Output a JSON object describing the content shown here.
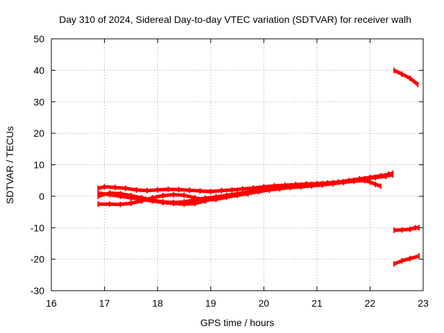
{
  "chart_data": {
    "type": "line",
    "title": "Day 310 of 2024, Sidereal Day-to-day VTEC variation (SDTVAR) for receiver walh",
    "xlabel": "GPS time / hours",
    "ylabel": "SDTVAR / TECUs",
    "xlim": [
      16,
      23
    ],
    "ylim": [
      -30,
      50
    ],
    "xticks": [
      "16",
      "17",
      "18",
      "19",
      "20",
      "21",
      "22",
      "23"
    ],
    "yticks": [
      "-30",
      "-20",
      "-10",
      "0",
      "10",
      "20",
      "30",
      "40",
      "50"
    ],
    "grid": true,
    "legend": "none",
    "color": "#ff0000",
    "series": [
      {
        "x": [
          16.88,
          17.0,
          17.2,
          17.4,
          17.6,
          17.8,
          18.0,
          18.2,
          18.4,
          18.6,
          18.8,
          19.0,
          19.2,
          19.4,
          19.6,
          19.8,
          20.0,
          20.2,
          20.4,
          20.6,
          20.8,
          21.0,
          21.2,
          21.4,
          21.6,
          21.8,
          22.0,
          22.2,
          22.35,
          22.43
        ],
        "y": [
          2.5,
          3.0,
          2.8,
          2.5,
          2.0,
          1.8,
          2.0,
          2.2,
          2.1,
          1.9,
          1.7,
          1.5,
          1.8,
          2.0,
          2.3,
          2.6,
          3.0,
          3.3,
          3.5,
          3.7,
          3.9,
          4.0,
          4.2,
          4.5,
          5.0,
          5.5,
          6.0,
          6.5,
          7.0,
          7.3
        ]
      },
      {
        "x": [
          16.88,
          17.1,
          17.3,
          17.5,
          17.7,
          17.9,
          18.1,
          18.3,
          18.5,
          18.7,
          18.9,
          19.1,
          19.3,
          19.5,
          19.7,
          19.9,
          20.1,
          20.3,
          20.5,
          20.7,
          20.9,
          21.1,
          21.3,
          21.5,
          21.7,
          21.9,
          22.1,
          22.3,
          22.43
        ],
        "y": [
          1.0,
          0.5,
          0.0,
          -0.5,
          -1.0,
          -1.5,
          -2.0,
          -2.3,
          -2.5,
          -2.3,
          -1.5,
          -0.5,
          0.0,
          0.5,
          1.0,
          1.5,
          2.0,
          2.5,
          3.0,
          3.3,
          3.5,
          3.7,
          4.0,
          4.5,
          5.0,
          5.5,
          6.0,
          6.5,
          6.8
        ]
      },
      {
        "x": [
          16.88,
          17.1,
          17.3,
          17.5,
          17.7,
          17.9,
          18.1,
          18.3,
          18.5,
          18.7,
          18.9,
          19.1,
          19.3,
          19.5,
          19.7,
          19.9,
          20.1,
          20.3,
          20.5,
          20.7,
          20.9,
          21.1,
          21.3,
          21.5,
          21.7,
          21.9,
          22.0,
          22.1,
          22.2
        ],
        "y": [
          -2.5,
          -2.5,
          -2.6,
          -2.2,
          -1.5,
          -0.5,
          0.2,
          0.5,
          0.3,
          -0.5,
          -1.2,
          -1.0,
          -0.3,
          0.3,
          0.8,
          1.5,
          2.0,
          2.4,
          2.8,
          3.0,
          3.3,
          3.6,
          4.0,
          4.4,
          4.8,
          5.0,
          4.5,
          3.8,
          3.2
        ]
      },
      {
        "x": [
          16.88,
          17.1,
          17.3,
          17.5,
          17.7,
          17.9,
          18.1,
          18.3,
          18.5,
          18.7,
          18.9,
          19.1,
          19.3,
          19.5,
          19.7,
          19.9,
          20.1,
          20.3,
          20.5,
          20.7,
          20.9,
          21.1,
          21.3,
          21.5,
          21.7,
          21.9,
          22.1,
          22.3
        ],
        "y": [
          0.0,
          1.0,
          0.8,
          0.2,
          -0.5,
          -1.2,
          -1.8,
          -2.0,
          -1.8,
          -1.2,
          -0.6,
          -0.2,
          0.3,
          0.8,
          1.3,
          1.8,
          2.3,
          2.8,
          3.2,
          3.5,
          3.8,
          4.0,
          4.3,
          4.6,
          5.0,
          5.5,
          6.0,
          6.3
        ]
      },
      {
        "x": [
          22.45,
          22.6,
          22.75,
          22.9
        ],
        "y": [
          40.0,
          38.8,
          37.5,
          35.5
        ]
      },
      {
        "x": [
          22.45,
          22.6,
          22.75,
          22.85,
          22.92
        ],
        "y": [
          -10.8,
          -10.7,
          -10.5,
          -10.0,
          -10.0
        ]
      },
      {
        "x": [
          22.45,
          22.6,
          22.75,
          22.92
        ],
        "y": [
          -21.5,
          -20.5,
          -19.8,
          -19.0
        ]
      }
    ]
  }
}
